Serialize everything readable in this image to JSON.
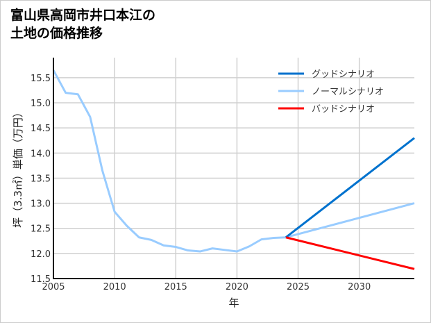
{
  "chart_data": {
    "type": "line",
    "title": [
      "富山県高岡市井口本江の",
      "土地の価格推移"
    ],
    "xlabel": "年",
    "ylabel": "坪（3.3㎡）単価（万円）",
    "xlim": [
      2005,
      2034.5
    ],
    "ylim": [
      11.5,
      15.9
    ],
    "xticks": [
      2005,
      2010,
      2015,
      2020,
      2025,
      2030
    ],
    "yticks": [
      11.5,
      12.0,
      12.5,
      13.0,
      13.5,
      14.0,
      14.5,
      15.0,
      15.5
    ],
    "grid": true,
    "legend_position": "top-right",
    "series": [
      {
        "name": "グッドシナリオ",
        "color": "#0072CE",
        "x": [
          2024,
          2034.5
        ],
        "y": [
          12.32,
          14.3
        ]
      },
      {
        "name": "ノーマルシナリオ",
        "color": "#99CCFF",
        "x": [
          2005,
          2006,
          2007,
          2008,
          2009,
          2010,
          2011,
          2012,
          2013,
          2014,
          2015,
          2016,
          2017,
          2018,
          2019,
          2020,
          2021,
          2022,
          2023,
          2024,
          2034.5
        ],
        "y": [
          15.65,
          15.2,
          15.17,
          14.72,
          13.65,
          12.83,
          12.55,
          12.32,
          12.27,
          12.16,
          12.13,
          12.06,
          12.04,
          12.1,
          12.07,
          12.04,
          12.14,
          12.28,
          12.31,
          12.32,
          13.0
        ]
      },
      {
        "name": "バッドシナリオ",
        "color": "#FF0000",
        "x": [
          2024,
          2034.5
        ],
        "y": [
          12.32,
          11.69
        ]
      }
    ]
  }
}
